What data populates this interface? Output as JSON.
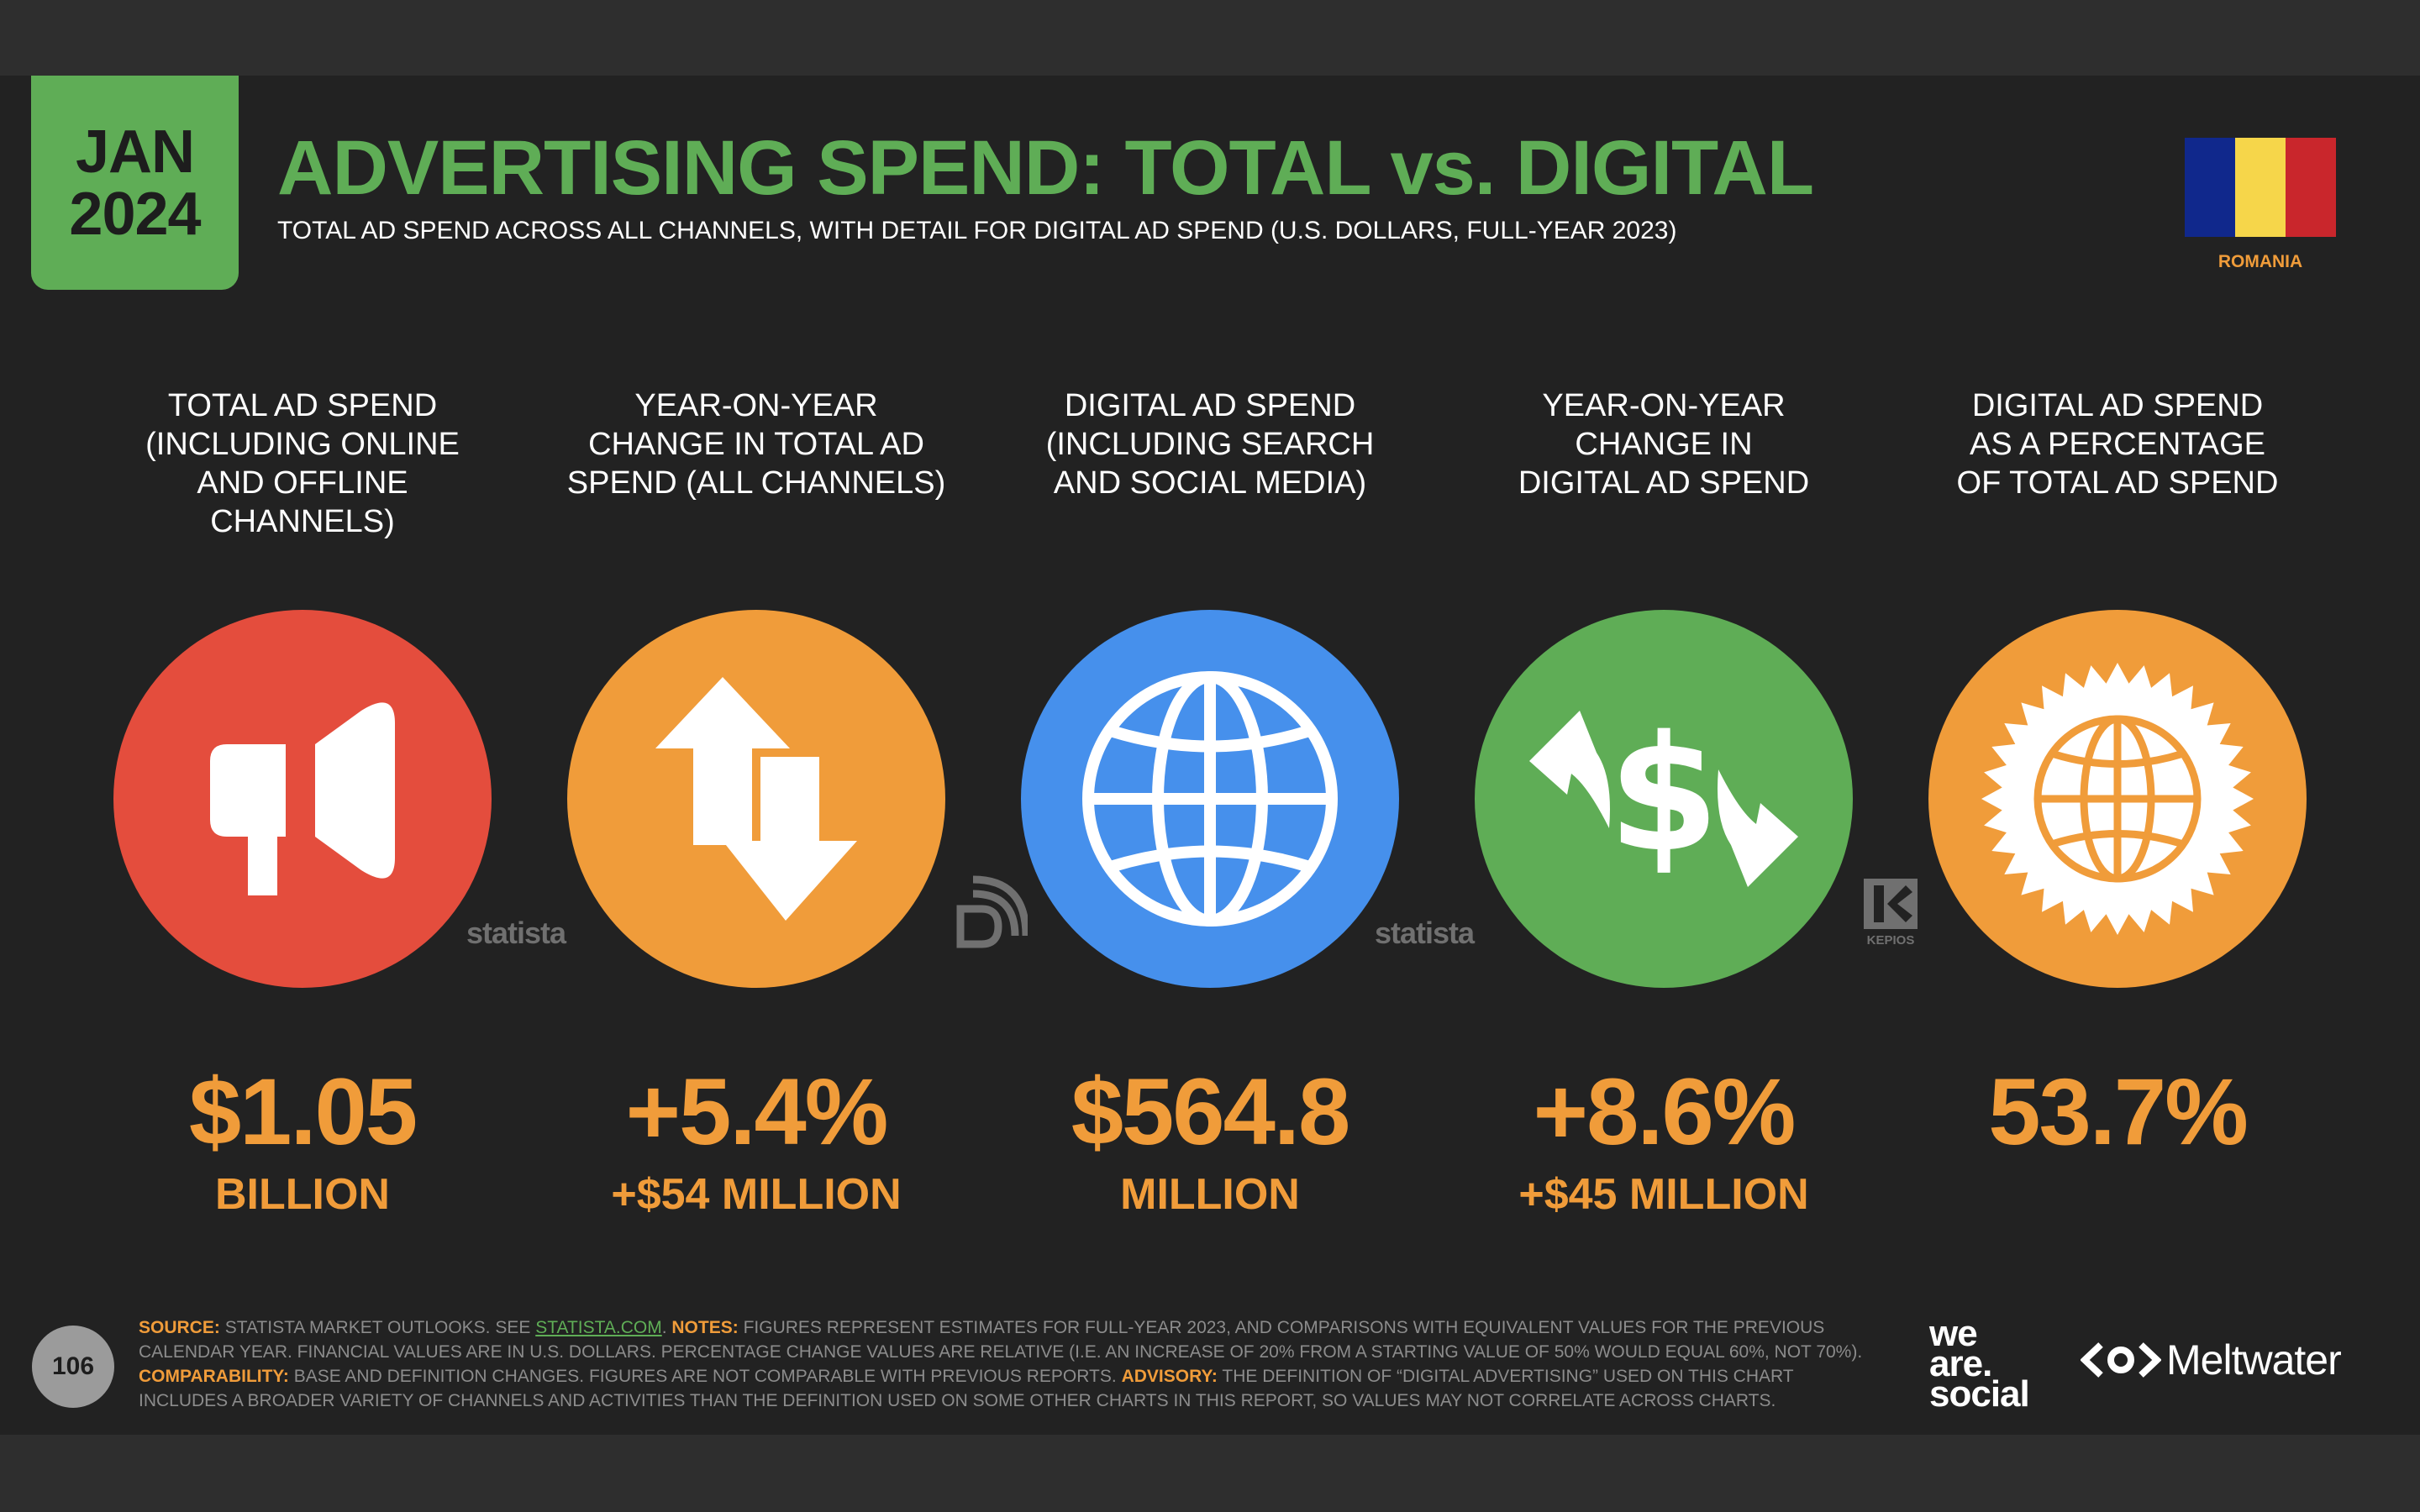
{
  "header": {
    "date_month": "JAN",
    "date_year": "2024",
    "title": "ADVERTISING SPEND: TOTAL vs. DIGITAL",
    "subtitle": "TOTAL AD SPEND ACROSS ALL CHANNELS, WITH DETAIL FOR DIGITAL AD SPEND (U.S. DOLLARS, FULL-YEAR 2023)",
    "country": "ROMANIA",
    "flag_colors": [
      "#10288c",
      "#f6d64a",
      "#c9262c"
    ]
  },
  "metrics": [
    {
      "label_lines": [
        "TOTAL AD SPEND",
        "(INCLUDING ONLINE",
        "AND OFFLINE CHANNELS)"
      ],
      "icon": "megaphone-icon",
      "color": "#e44d3d",
      "value": "$1.05",
      "sub": "BILLION"
    },
    {
      "label_lines": [
        "YEAR-ON-YEAR",
        "CHANGE IN TOTAL AD",
        "SPEND (ALL CHANNELS)"
      ],
      "icon": "up-down-arrows-icon",
      "color": "#f09c3a",
      "value": "+5.4%",
      "sub": "+$54 MILLION"
    },
    {
      "label_lines": [
        "DIGITAL AD SPEND",
        "(INCLUDING SEARCH",
        "AND SOCIAL MEDIA)"
      ],
      "icon": "globe-icon",
      "color": "#4690ec",
      "value": "$564.8",
      "sub": "MILLION"
    },
    {
      "label_lines": [
        "YEAR-ON-YEAR",
        "CHANGE IN",
        "DIGITAL AD SPEND"
      ],
      "icon": "dollar-exchange-icon",
      "color": "#5fad56",
      "value": "+8.6%",
      "sub": "+$45 MILLION"
    },
    {
      "label_lines": [
        "DIGITAL AD SPEND",
        "AS A PERCENTAGE",
        "OF TOTAL AD SPEND"
      ],
      "icon": "globe-badge-icon",
      "color": "#f09c3a",
      "value": "53.7%",
      "sub": ""
    }
  ],
  "source_logos": {
    "statista_1": "statista",
    "statista_2": "statista",
    "kepios": "KEPIOS"
  },
  "footer": {
    "page_number": "106",
    "source_label": "SOURCE:",
    "source_text": "STATISTA MARKET OUTLOOKS. SEE",
    "source_link": "STATISTA.COM",
    "notes_label": "NOTES:",
    "notes_text": "FIGURES REPRESENT ESTIMATES FOR FULL-YEAR 2023, AND COMPARISONS WITH EQUIVALENT VALUES FOR THE PREVIOUS CALENDAR YEAR. FINANCIAL VALUES ARE IN U.S. DOLLARS. PERCENTAGE CHANGE VALUES ARE RELATIVE (I.E. AN INCREASE OF 20% FROM A STARTING VALUE OF 50% WOULD EQUAL 60%, NOT 70%).",
    "comparability_label": "COMPARABILITY:",
    "comparability_text": "BASE AND DEFINITION CHANGES. FIGURES ARE NOT COMPARABLE WITH PREVIOUS REPORTS.",
    "advisory_label": "ADVISORY:",
    "advisory_text": "THE DEFINITION OF “DIGITAL ADVERTISING” USED ON THIS CHART INCLUDES A BROADER VARIETY OF CHANNELS AND ACTIVITIES THAN THE DEFINITION USED ON SOME OTHER CHARTS IN THIS REPORT, SO VALUES MAY NOT CORRELATE ACROSS CHARTS.",
    "brand_line1": "we",
    "brand_line2": "are.",
    "brand_line3": "social",
    "brand2": "Meltwater"
  }
}
